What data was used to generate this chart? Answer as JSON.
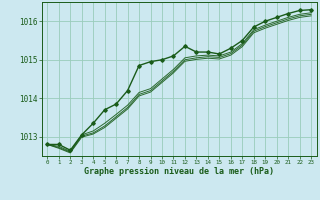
{
  "background_color": "#cce8f0",
  "grid_color": "#99ccbb",
  "line_color": "#1a5c1a",
  "xlabel": "Graphe pression niveau de la mer (hPa)",
  "xlim": [
    -0.5,
    23.5
  ],
  "ylim": [
    1012.5,
    1016.5
  ],
  "yticks": [
    1013,
    1014,
    1015,
    1016
  ],
  "xticks": [
    0,
    1,
    2,
    3,
    4,
    5,
    6,
    7,
    8,
    9,
    10,
    11,
    12,
    13,
    14,
    15,
    16,
    17,
    18,
    19,
    20,
    21,
    22,
    23
  ],
  "series_main": [
    1012.8,
    1012.8,
    1012.65,
    1013.05,
    1013.35,
    1013.7,
    1013.85,
    1014.2,
    1014.85,
    1014.95,
    1015.0,
    1015.1,
    1015.35,
    1015.2,
    1015.2,
    1015.15,
    1015.3,
    1015.5,
    1015.85,
    1016.0,
    1016.1,
    1016.2,
    1016.28,
    1016.3
  ],
  "series_smooth": [
    [
      1012.8,
      1012.75,
      1012.62,
      1013.05,
      1013.15,
      1013.35,
      1013.58,
      1013.82,
      1014.15,
      1014.25,
      1014.5,
      1014.75,
      1015.05,
      1015.1,
      1015.12,
      1015.1,
      1015.2,
      1015.42,
      1015.78,
      1015.9,
      1016.0,
      1016.1,
      1016.18,
      1016.22
    ],
    [
      1012.8,
      1012.72,
      1012.6,
      1013.02,
      1013.1,
      1013.28,
      1013.52,
      1013.76,
      1014.1,
      1014.2,
      1014.45,
      1014.7,
      1015.0,
      1015.05,
      1015.08,
      1015.06,
      1015.16,
      1015.38,
      1015.74,
      1015.86,
      1015.96,
      1016.06,
      1016.14,
      1016.18
    ],
    [
      1012.8,
      1012.7,
      1012.58,
      1012.99,
      1013.07,
      1013.24,
      1013.48,
      1013.72,
      1014.06,
      1014.16,
      1014.41,
      1014.66,
      1014.96,
      1015.01,
      1015.04,
      1015.02,
      1015.12,
      1015.34,
      1015.7,
      1015.82,
      1015.92,
      1016.02,
      1016.1,
      1016.14
    ]
  ]
}
